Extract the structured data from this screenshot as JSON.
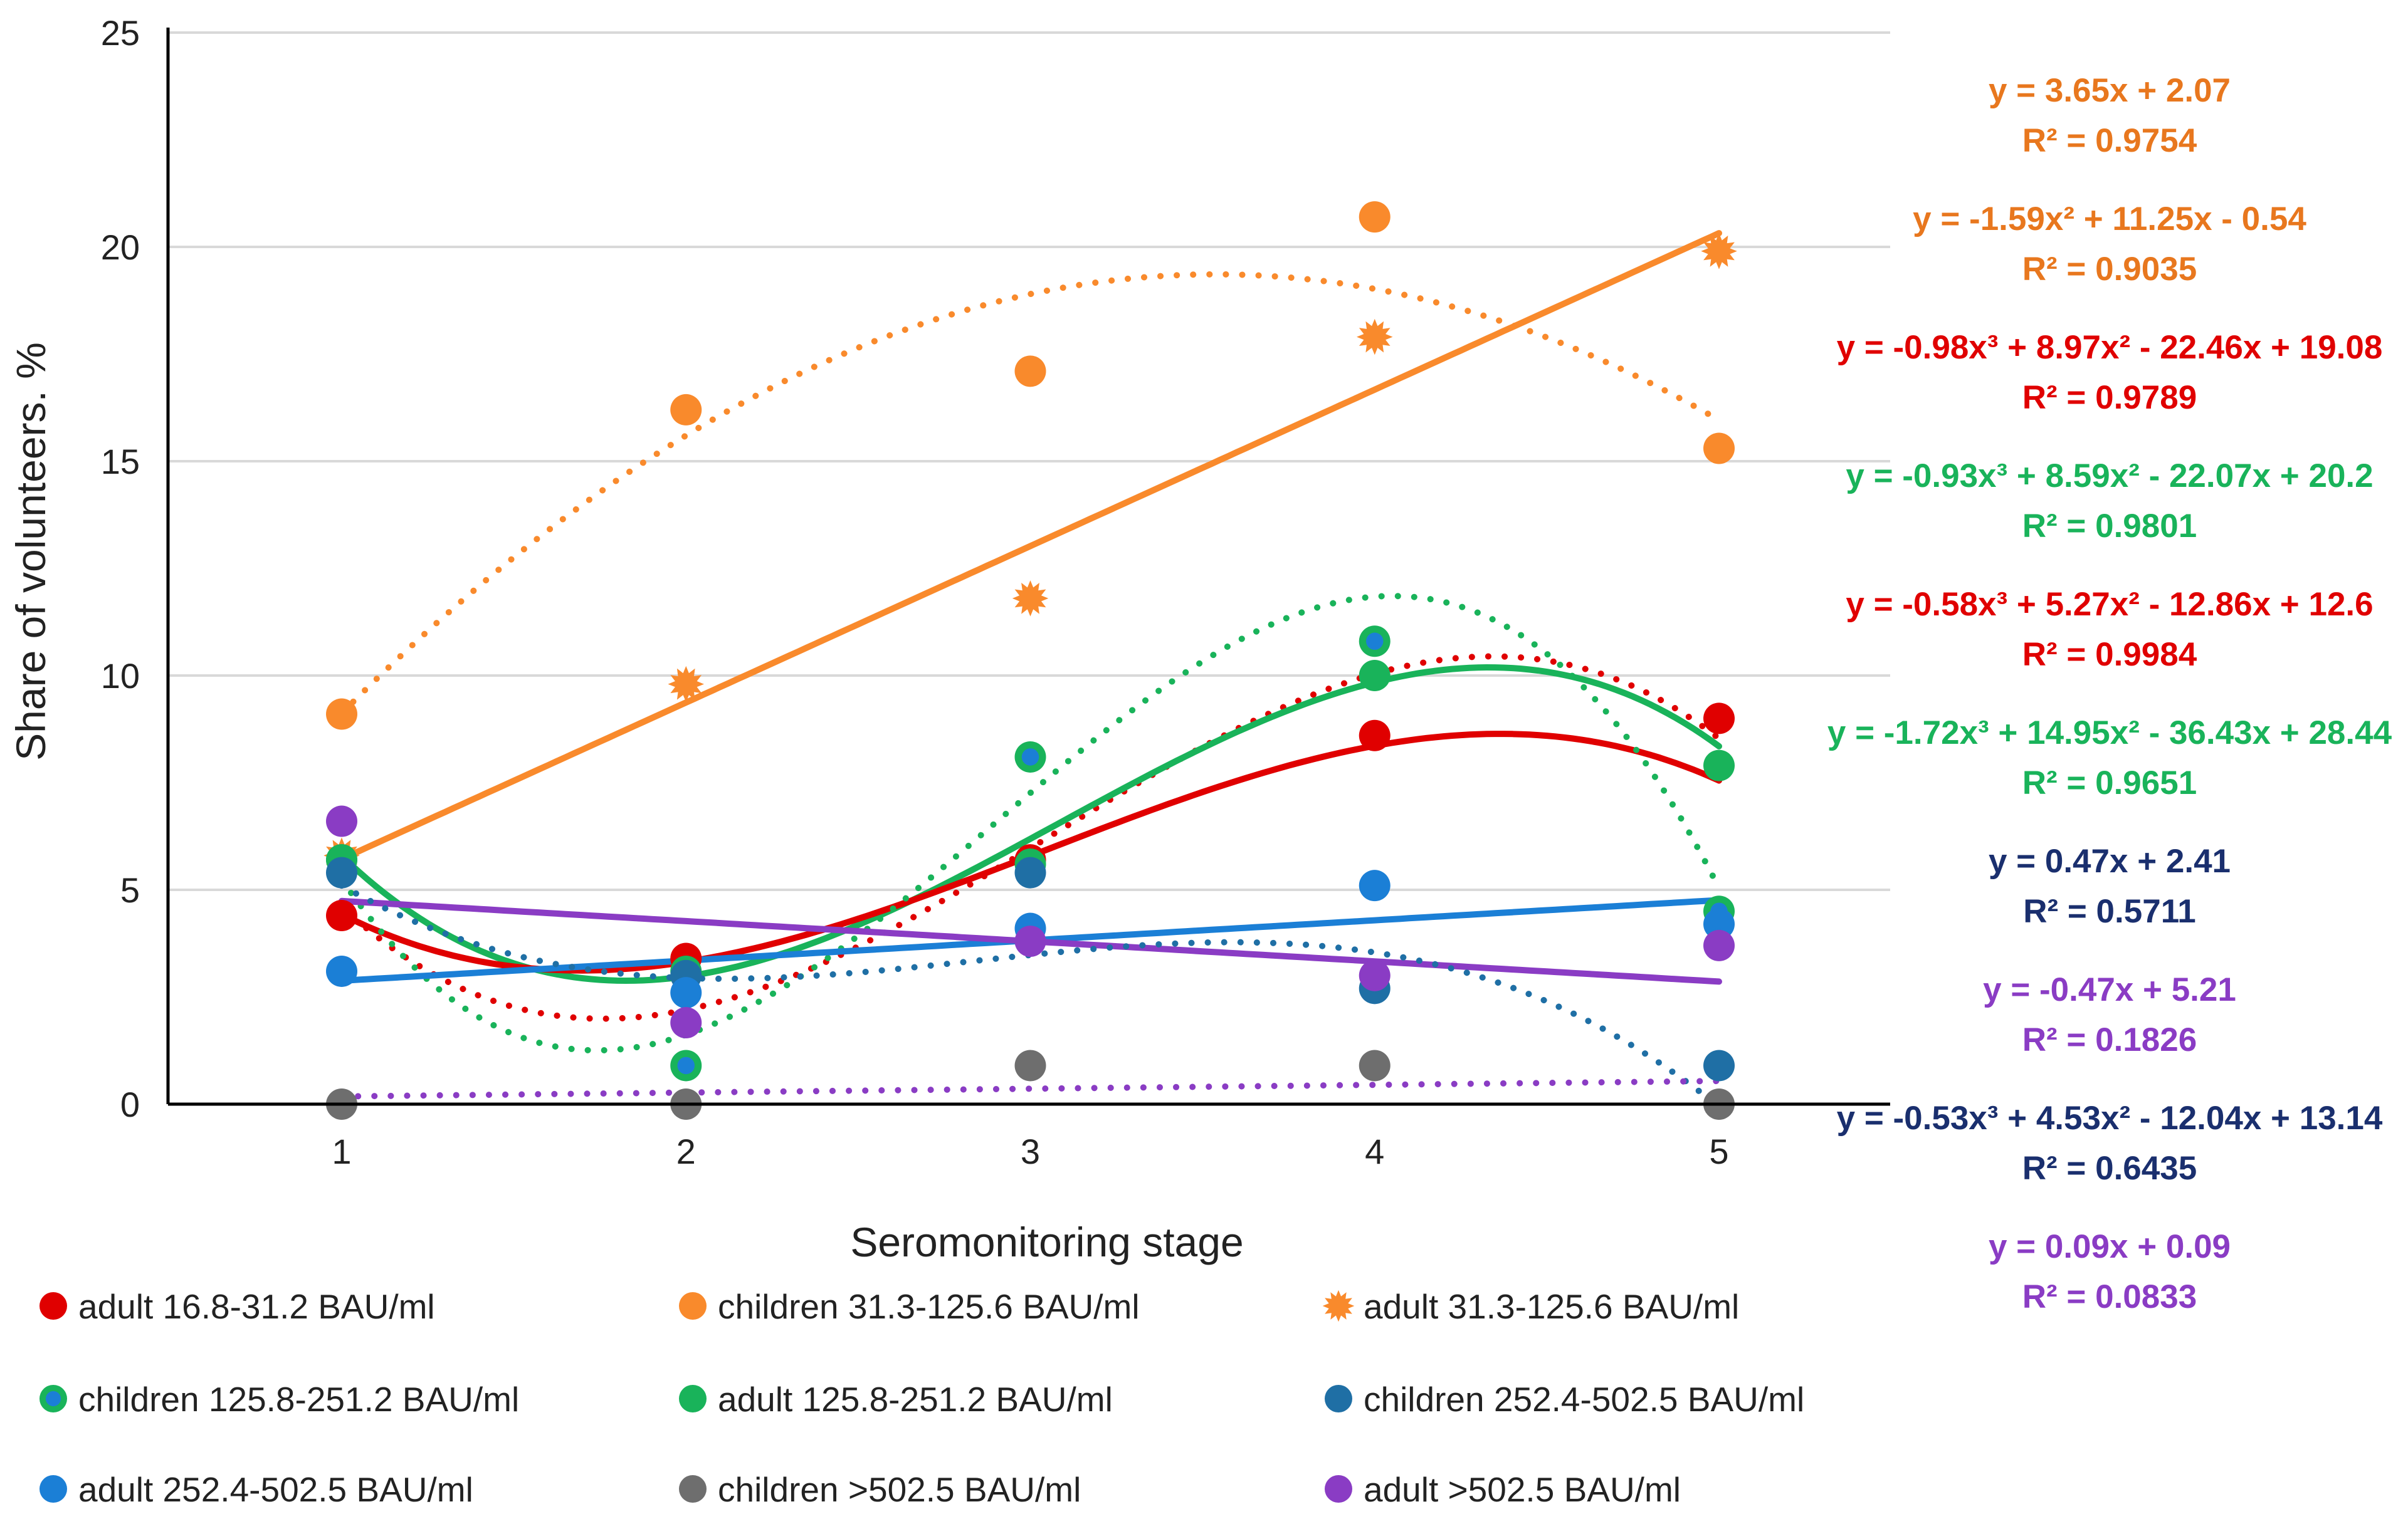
{
  "chart_data": {
    "type": "scatter",
    "title": "",
    "xlabel": "Seromonitoring stage",
    "ylabel": "Share of volunteers. %",
    "xlim": [
      1,
      5
    ],
    "ylim": [
      0,
      25
    ],
    "x_ticks": [
      "1",
      "2",
      "3",
      "4",
      "5"
    ],
    "y_ticks": [
      "0",
      "5",
      "10",
      "15",
      "20",
      "25"
    ],
    "gridlines": true,
    "legend_position": "bottom",
    "series": [
      {
        "name": "adult 16.8-31.2 BAU/ml",
        "color": "#e00000",
        "marker": "circle",
        "x": [
          1,
          2,
          3,
          4,
          5
        ],
        "values": [
          4.4,
          3.4,
          5.7,
          8.6,
          9.0
        ]
      },
      {
        "name": "children  31.3-125.6 BAU/ml",
        "color": "#f98a2c",
        "marker": "circle",
        "x": [
          1,
          2,
          3,
          4,
          5
        ],
        "values": [
          9.1,
          16.2,
          17.1,
          20.7,
          15.3
        ]
      },
      {
        "name": "adult 31.3-125.6 BAU/ml",
        "color": "#f98a2c",
        "marker": "burst",
        "x": [
          1,
          2,
          3,
          4,
          5
        ],
        "values": [
          5.8,
          9.8,
          11.8,
          17.9,
          19.9
        ]
      },
      {
        "name": "children  125.8-251.2  BAU/ml",
        "color": "#19b35a",
        "marker": "circle-blue-center",
        "x": [
          1,
          2,
          3,
          4,
          5
        ],
        "values": [
          5.7,
          0.9,
          8.1,
          10.8,
          4.5
        ]
      },
      {
        "name": "adult 125.8-251.2 BAU/ml",
        "color": "#19b35a",
        "marker": "circle",
        "x": [
          1,
          2,
          3,
          4,
          5
        ],
        "values": [
          5.7,
          3.1,
          5.6,
          10.0,
          7.9
        ]
      },
      {
        "name": "children  252.4-502.5  BAU/ml",
        "color": "#1f6fa5",
        "marker": "circle",
        "x": [
          1,
          2,
          3,
          4,
          5
        ],
        "values": [
          5.4,
          3.0,
          5.4,
          2.7,
          0.9
        ]
      },
      {
        "name": "adult 252.4-502.5 BAU/ml",
        "color": "#1b7fd6",
        "marker": "circle",
        "x": [
          1,
          2,
          3,
          4,
          5
        ],
        "values": [
          3.1,
          2.6,
          4.1,
          5.1,
          4.2
        ]
      },
      {
        "name": "children  >502.5 BAU/ml",
        "color": "#6e6e6e",
        "marker": "circle",
        "x": [
          1,
          2,
          3,
          4,
          5
        ],
        "values": [
          0.0,
          0.0,
          0.9,
          0.9,
          0.0
        ]
      },
      {
        "name": "adult >502.5 BAU/ml",
        "color": "#8a3cc4",
        "marker": "circle",
        "x": [
          1,
          2,
          3,
          4,
          5
        ],
        "values": [
          6.6,
          1.9,
          3.8,
          3.0,
          3.7
        ]
      }
    ],
    "trendlines": [
      {
        "name": "children 31.3-125.6 linear",
        "color": "#f98a2c",
        "style": "solid",
        "coeffs": [
          3.65,
          2.07
        ]
      },
      {
        "name": "adult 31.3-125.6 poly2",
        "color": "#f98a2c",
        "style": "dotted",
        "coeffs": [
          -1.59,
          11.25,
          -0.54
        ]
      },
      {
        "name": "adult 16.8-31.2 poly3",
        "color": "#e00000",
        "style": "dotted",
        "coeffs": [
          -0.98,
          8.97,
          -22.46,
          19.08
        ]
      },
      {
        "name": "adult 125.8-251.2 poly3",
        "color": "#19b35a",
        "style": "solid",
        "coeffs": [
          -0.93,
          8.59,
          -22.07,
          20.2
        ]
      },
      {
        "name": "red solid poly3",
        "color": "#e00000",
        "style": "solid",
        "coeffs": [
          -0.58,
          5.27,
          -12.86,
          12.6
        ]
      },
      {
        "name": "children 125.8-251.2 poly3",
        "color": "#19b35a",
        "style": "dotted",
        "coeffs": [
          -1.72,
          14.95,
          -36.43,
          28.44
        ]
      },
      {
        "name": "adult 252.4-502.5 linear",
        "color": "#1b7fd6",
        "style": "solid",
        "coeffs": [
          0.47,
          2.41
        ]
      },
      {
        "name": "adult >502.5 linear",
        "color": "#8a3cc4",
        "style": "solid",
        "coeffs": [
          -0.47,
          5.21
        ]
      },
      {
        "name": "children 252.4-502.5 poly3",
        "color": "#1f6fa5",
        "style": "dotted",
        "coeffs": [
          -0.53,
          4.53,
          -12.04,
          13.14
        ]
      },
      {
        "name": "children >502.5 linear",
        "color": "#8a3cc4",
        "style": "dotted",
        "coeffs": [
          0.09,
          0.09
        ]
      }
    ],
    "equations": [
      {
        "eq": "y = 3.65x + 2.07",
        "r2": "R² = 0.9754",
        "color": "#e8771e"
      },
      {
        "eq": "y = -1.59x² + 11.25x - 0.54",
        "r2": "R² = 0.9035",
        "color": "#e8771e"
      },
      {
        "eq": "y = -0.98x³ + 8.97x² - 22.46x + 19.08",
        "r2": "R² = 0.9789",
        "color": "#e00000"
      },
      {
        "eq": "y = -0.93x³ + 8.59x² - 22.07x + 20.2",
        "r2": "R² = 0.9801",
        "color": "#19b35a"
      },
      {
        "eq": "y = -0.58x³ + 5.27x² - 12.86x + 12.6",
        "r2": "R² = 0.9984",
        "color": "#e00000"
      },
      {
        "eq": "y = -1.72x³ + 14.95x² - 36.43x + 28.44",
        "r2": "R² = 0.9651",
        "color": "#19b35a"
      },
      {
        "eq": "y = 0.47x + 2.41",
        "r2": "R² = 0.5711",
        "color": "#1a2f6e"
      },
      {
        "eq": "y = -0.47x + 5.21",
        "r2": "R² = 0.1826",
        "color": "#8a3cc4"
      },
      {
        "eq": "y = -0.53x³ + 4.53x² - 12.04x + 13.14",
        "r2": "R² = 0.6435",
        "color": "#1a2f6e"
      },
      {
        "eq": "y = 0.09x + 0.09",
        "r2": "R² = 0.0833",
        "color": "#8a3cc4"
      }
    ]
  }
}
